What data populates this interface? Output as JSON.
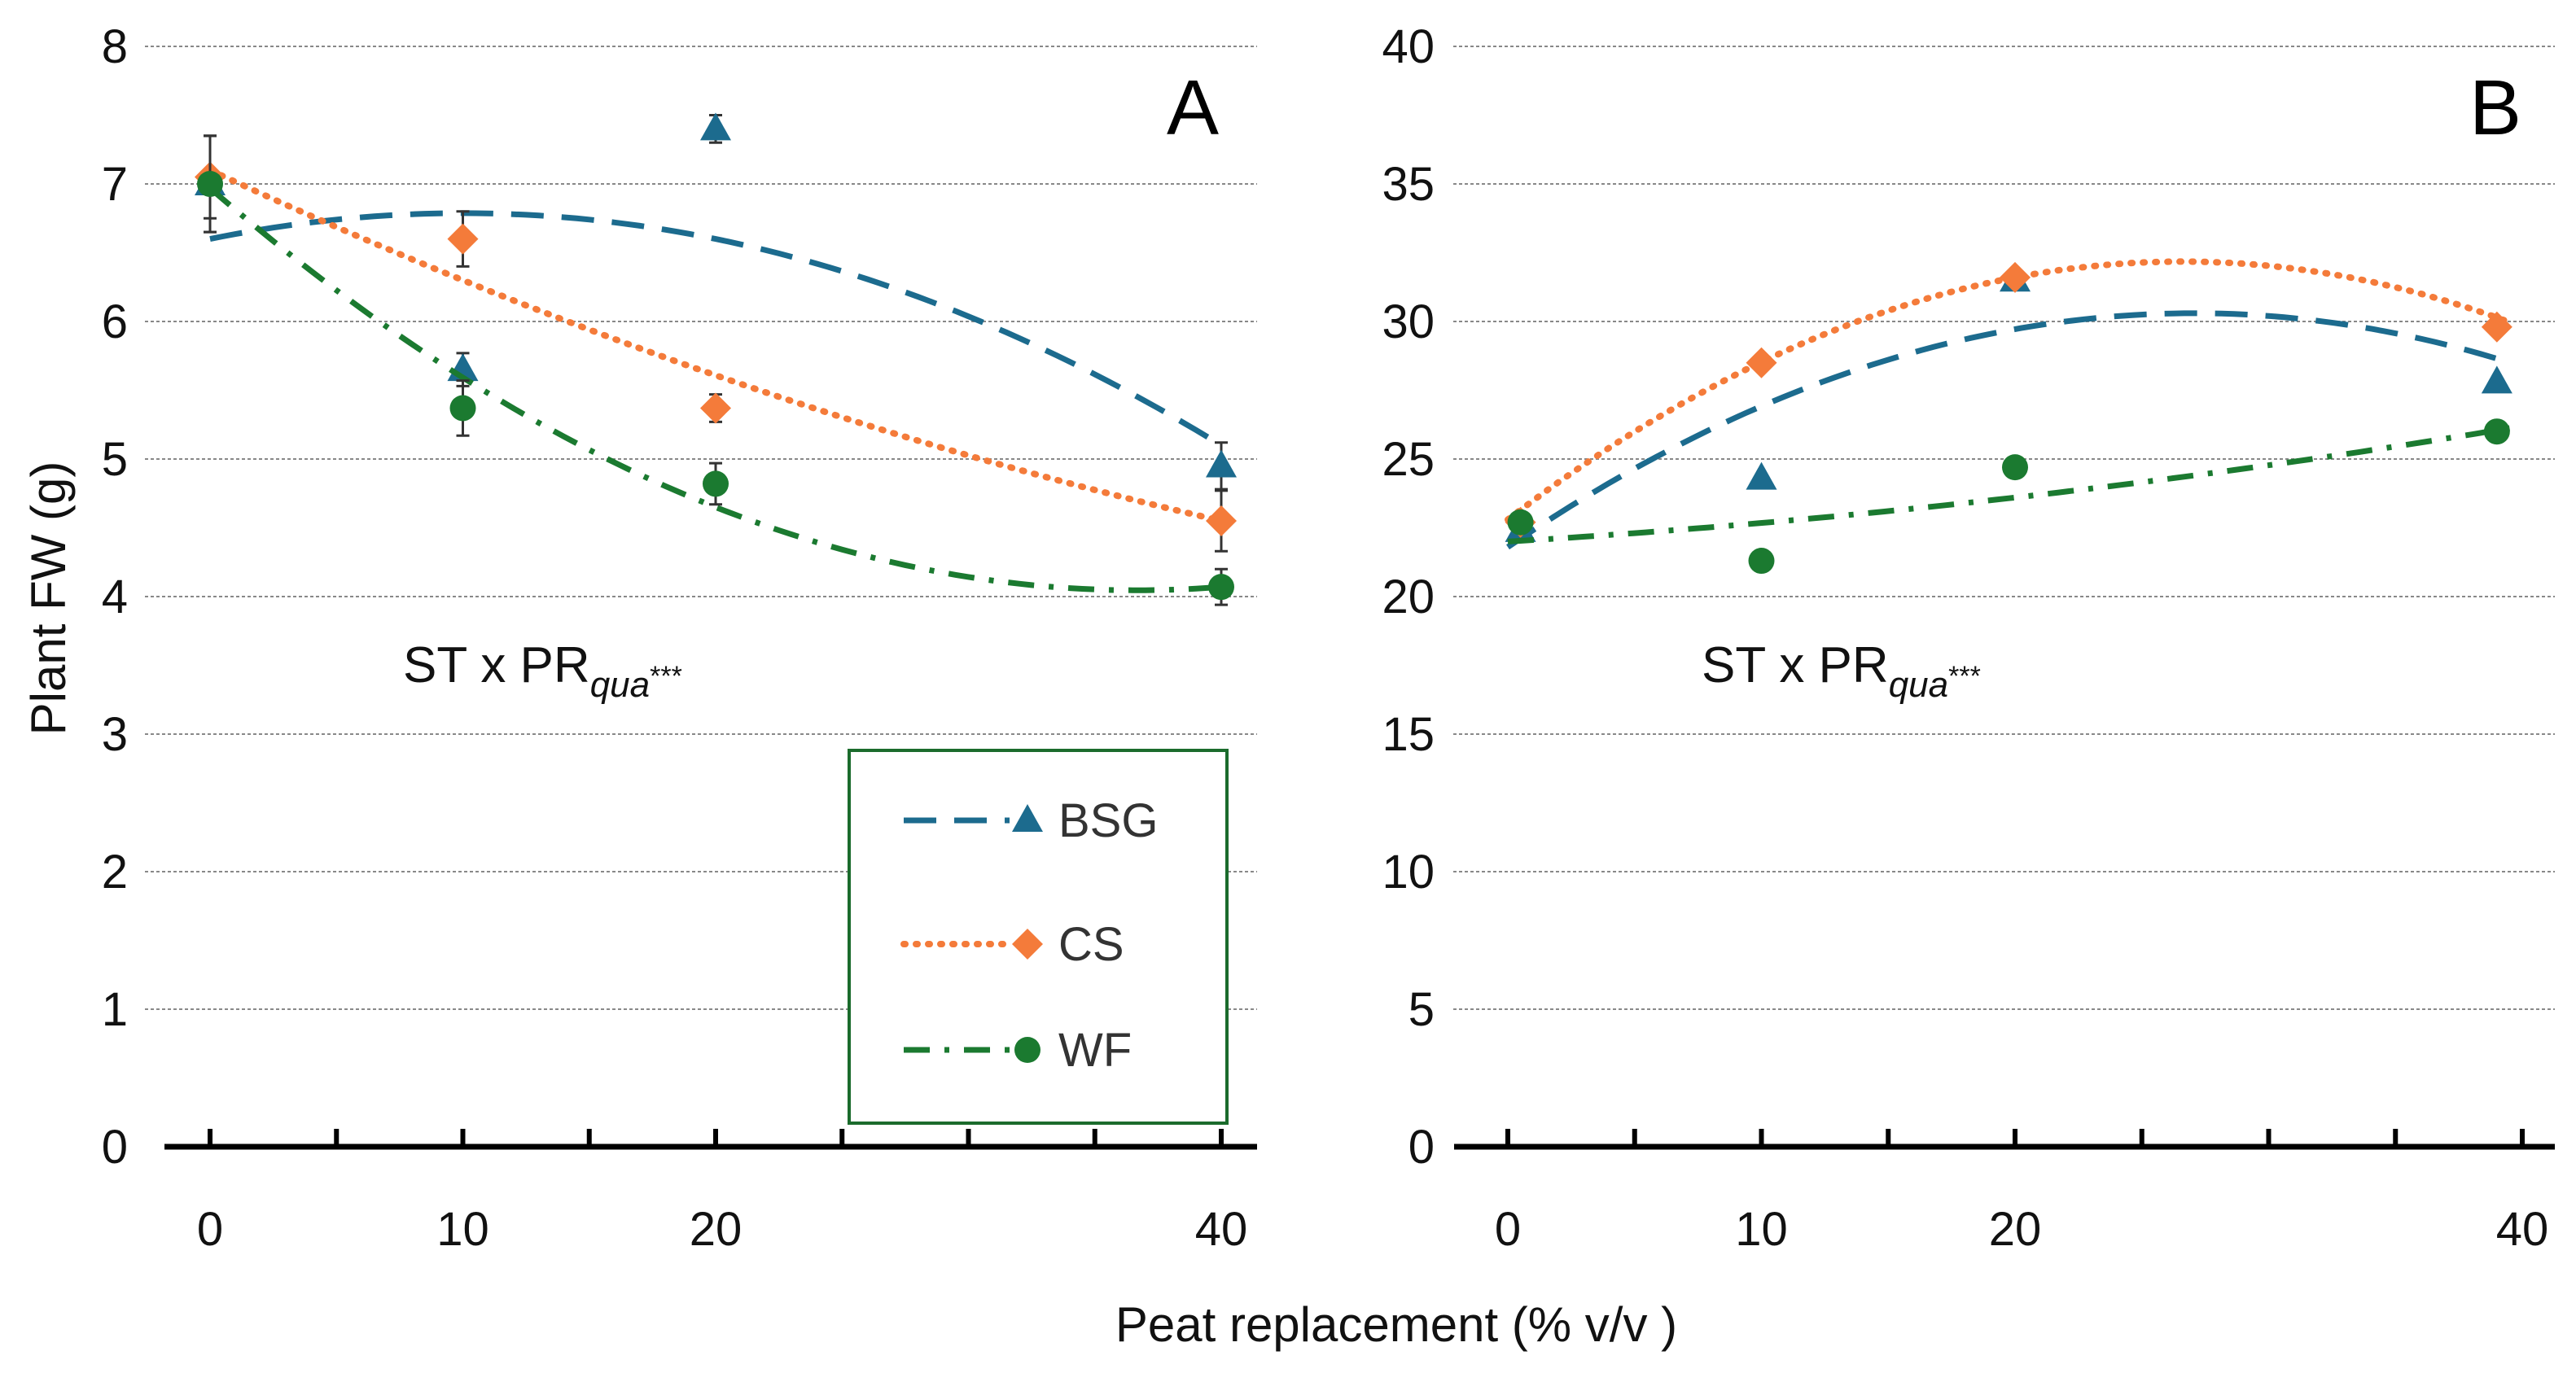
{
  "chart_data": [
    {
      "type": "scatter",
      "panel_label": "A",
      "ylabel": "Plant FW (g)",
      "xlabel": "Peat replacement (% v/v )",
      "xlim": [
        0,
        40
      ],
      "ylim": [
        0,
        8
      ],
      "x_ticks": [
        0,
        10,
        20,
        40
      ],
      "y_ticks": [
        0,
        1,
        2,
        3,
        4,
        5,
        6,
        7,
        8
      ],
      "grid": true,
      "annotation": {
        "main": "ST x PR",
        "sub": "qua",
        "sup": "***"
      },
      "legend": {
        "placement": "bottom-right",
        "entries": [
          "BSG",
          "CS",
          "WF"
        ]
      },
      "series": [
        {
          "name": "BSG",
          "color": "#1c6b8e",
          "marker": "triangle",
          "line": "dashed",
          "x": [
            0,
            10,
            20,
            40
          ],
          "y": [
            7.0,
            5.65,
            7.4,
            4.95
          ],
          "err": [
            0.35,
            0.12,
            0.1,
            0.17
          ],
          "trend": [
            6.6,
            0.0375,
            -0.001875
          ]
        },
        {
          "name": "CS",
          "color": "#f47b3a",
          "marker": "diamond",
          "line": "dotted",
          "x": [
            0,
            10,
            20,
            40
          ],
          "y": [
            7.05,
            6.6,
            5.37,
            4.55
          ],
          "err": [
            0.3,
            0.2,
            0.1,
            0.22
          ],
          "trend": [
            7.1,
            -0.0854,
            0.000542
          ]
        },
        {
          "name": "WF",
          "color": "#1b7a30",
          "marker": "circle",
          "line": "dashdot",
          "x": [
            0,
            10,
            20,
            40
          ],
          "y": [
            7.0,
            5.37,
            4.82,
            4.07
          ],
          "err": [
            0.35,
            0.2,
            0.15,
            0.13
          ],
          "trend": [
            6.97,
            -0.1595,
            0.002175
          ]
        }
      ]
    },
    {
      "type": "scatter",
      "panel_label": "B",
      "xlim": [
        0,
        40
      ],
      "ylim": [
        0,
        40
      ],
      "x_ticks": [
        0,
        10,
        20,
        40
      ],
      "y_ticks": [
        0,
        5,
        10,
        15,
        20,
        25,
        30,
        35,
        40
      ],
      "grid": true,
      "annotation": {
        "main": "ST x PR",
        "sub": "qua",
        "sup": "***"
      },
      "series": [
        {
          "name": "BSG",
          "color": "#1c6b8e",
          "marker": "triangle",
          "line": "dashed",
          "x": [
            0,
            10,
            20,
            40
          ],
          "y": [
            22.4,
            24.3,
            31.5,
            27.8
          ],
          "trend": [
            21.8,
            0.628,
            -0.0116
          ]
        },
        {
          "name": "CS",
          "color": "#f47b3a",
          "marker": "diamond",
          "line": "dotted",
          "x": [
            0,
            10,
            20,
            40
          ],
          "y": [
            22.7,
            28.5,
            31.6,
            29.8
          ],
          "trend": [
            22.8,
            0.705,
            -0.01325
          ]
        },
        {
          "name": "WF",
          "color": "#1b7a30",
          "marker": "circle",
          "line": "dashdot",
          "x": [
            0,
            10,
            20,
            40
          ],
          "y": [
            22.7,
            21.3,
            24.7,
            26.0
          ],
          "trend": [
            22.0,
            0.055,
            0.00125
          ]
        }
      ]
    }
  ]
}
